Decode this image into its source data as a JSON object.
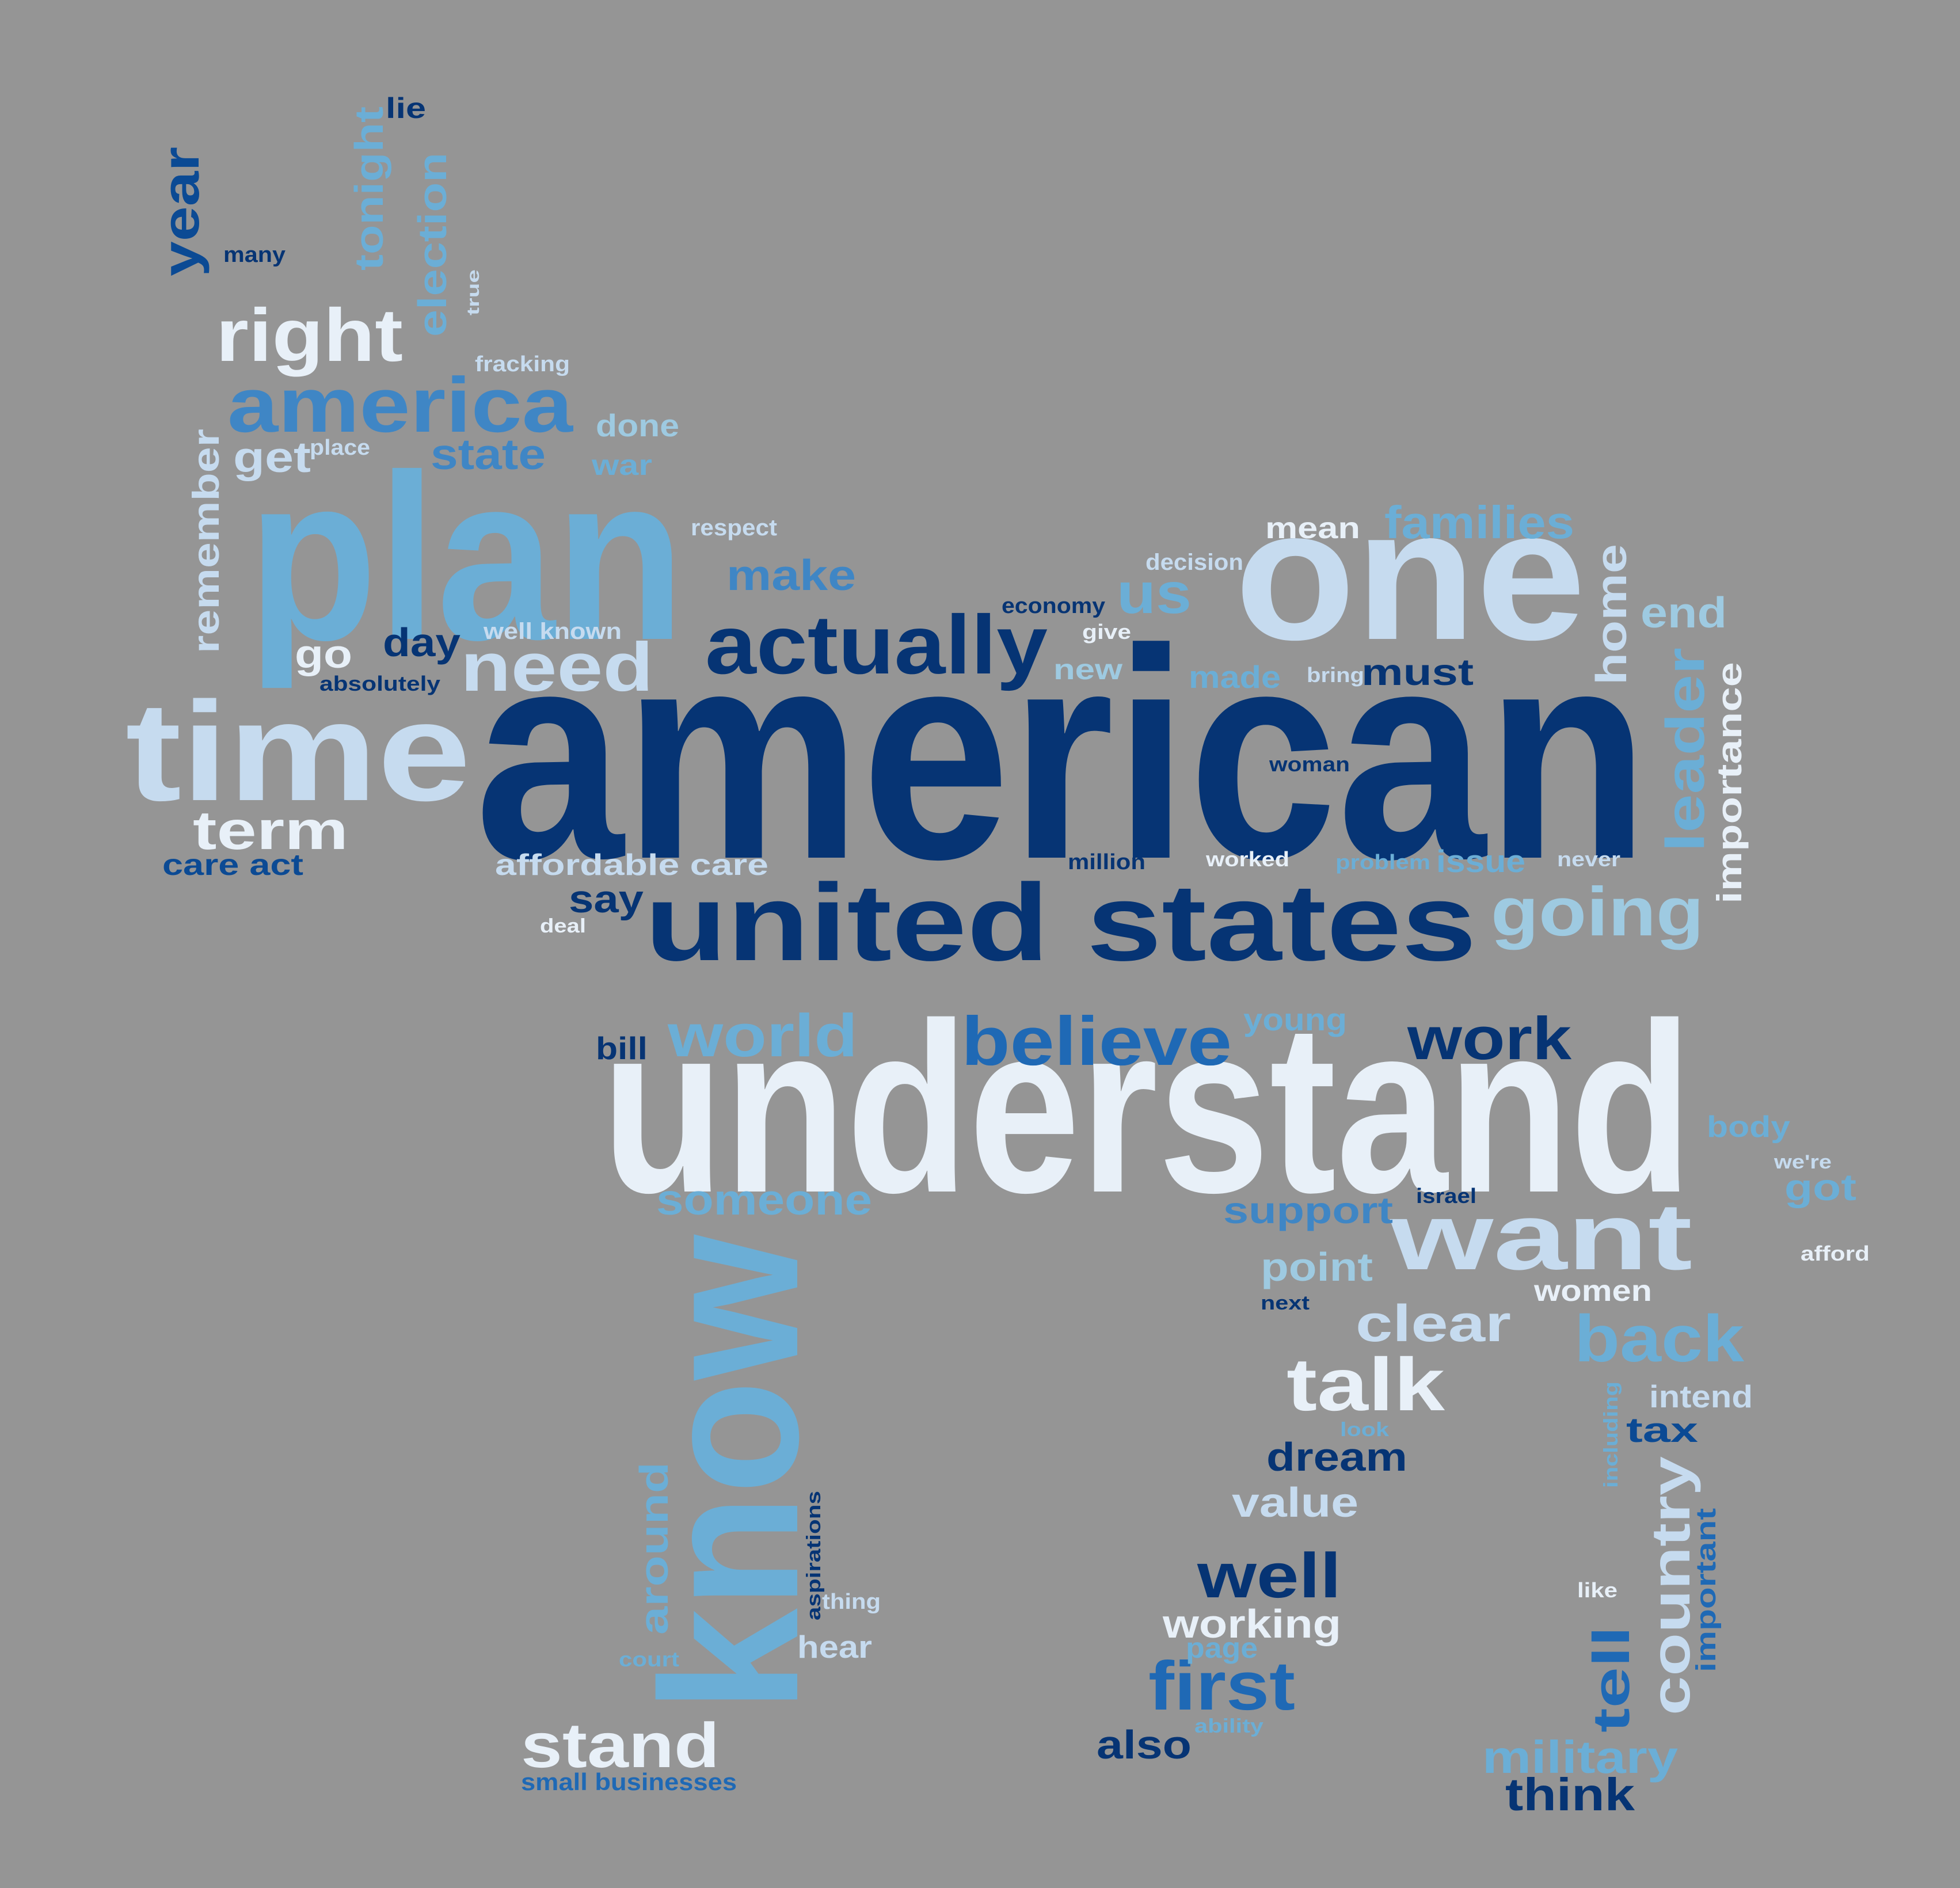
{
  "word_cloud": {
    "background": "#959595",
    "palette": {
      "navy": "#063474",
      "dark_blue": "#0B4A94",
      "blue": "#1F69B5",
      "mid_blue": "#3F86C5",
      "light_blue": "#6BAED6",
      "sky": "#9ECAE1",
      "pale": "#C6DBEF",
      "white": "#E8F0F8"
    },
    "words": [
      {
        "text": "american",
        "color": "navy"
      },
      {
        "text": "understand",
        "color": "white"
      },
      {
        "text": "plan",
        "color": "light_blue"
      },
      {
        "text": "one",
        "color": "pale"
      },
      {
        "text": "know",
        "color": "light_blue"
      },
      {
        "text": "time",
        "color": "pale"
      },
      {
        "text": "united states",
        "color": "navy"
      },
      {
        "text": "want",
        "color": "pale"
      },
      {
        "text": "actually",
        "color": "navy"
      },
      {
        "text": "america",
        "color": "mid_blue"
      },
      {
        "text": "believe",
        "color": "blue"
      },
      {
        "text": "going",
        "color": "sky"
      },
      {
        "text": "right",
        "color": "white"
      },
      {
        "text": "need",
        "color": "pale"
      },
      {
        "text": "talk",
        "color": "white"
      },
      {
        "text": "world",
        "color": "light_blue"
      },
      {
        "text": "work",
        "color": "navy"
      },
      {
        "text": "back",
        "color": "light_blue"
      },
      {
        "text": "us",
        "color": "light_blue"
      },
      {
        "text": "first",
        "color": "blue"
      },
      {
        "text": "stand",
        "color": "white"
      },
      {
        "text": "term",
        "color": "white"
      },
      {
        "text": "well",
        "color": "navy"
      },
      {
        "text": "clear",
        "color": "pale"
      },
      {
        "text": "families",
        "color": "light_blue"
      },
      {
        "text": "make",
        "color": "mid_blue"
      },
      {
        "text": "state",
        "color": "mid_blue"
      },
      {
        "text": "leader",
        "color": "light_blue"
      },
      {
        "text": "country",
        "color": "pale"
      },
      {
        "text": "year",
        "color": "dark_blue"
      },
      {
        "text": "tell",
        "color": "blue"
      },
      {
        "text": "military",
        "color": "light_blue"
      },
      {
        "text": "think",
        "color": "navy"
      },
      {
        "text": "someone",
        "color": "light_blue"
      },
      {
        "text": "home",
        "color": "pale"
      },
      {
        "text": "end",
        "color": "sky"
      },
      {
        "text": "get",
        "color": "pale"
      },
      {
        "text": "remember",
        "color": "pale"
      },
      {
        "text": "election",
        "color": "light_blue"
      },
      {
        "text": "tonight",
        "color": "light_blue"
      },
      {
        "text": "day",
        "color": "navy"
      },
      {
        "text": "go",
        "color": "white"
      },
      {
        "text": "must",
        "color": "navy"
      },
      {
        "text": "support",
        "color": "mid_blue"
      },
      {
        "text": "point",
        "color": "sky"
      },
      {
        "text": "value",
        "color": "pale"
      },
      {
        "text": "working",
        "color": "white"
      },
      {
        "text": "dream",
        "color": "navy"
      },
      {
        "text": "also",
        "color": "navy"
      },
      {
        "text": "around",
        "color": "light_blue"
      },
      {
        "text": "say",
        "color": "navy"
      },
      {
        "text": "importance",
        "color": "white"
      },
      {
        "text": "care act",
        "color": "dark_blue"
      },
      {
        "text": "affordable care",
        "color": "pale"
      },
      {
        "text": "mean",
        "color": "white"
      },
      {
        "text": "done",
        "color": "sky"
      },
      {
        "text": "war",
        "color": "light_blue"
      },
      {
        "text": "issue",
        "color": "light_blue"
      },
      {
        "text": "made",
        "color": "light_blue"
      },
      {
        "text": "new",
        "color": "sky"
      },
      {
        "text": "tax",
        "color": "dark_blue"
      },
      {
        "text": "intend",
        "color": "pale"
      },
      {
        "text": "got",
        "color": "light_blue"
      },
      {
        "text": "young",
        "color": "light_blue"
      },
      {
        "text": "bill",
        "color": "navy"
      },
      {
        "text": "hear",
        "color": "pale"
      },
      {
        "text": "women",
        "color": "white"
      },
      {
        "text": "body",
        "color": "light_blue"
      },
      {
        "text": "important",
        "color": "blue"
      },
      {
        "text": "small businesses",
        "color": "blue"
      },
      {
        "text": "lie",
        "color": "navy"
      },
      {
        "text": "page",
        "color": "light_blue"
      },
      {
        "text": "economy",
        "color": "navy"
      },
      {
        "text": "well known",
        "color": "pale"
      },
      {
        "text": "decision",
        "color": "pale"
      },
      {
        "text": "respect",
        "color": "pale"
      },
      {
        "text": "fracking",
        "color": "pale"
      },
      {
        "text": "many",
        "color": "navy"
      },
      {
        "text": "place",
        "color": "pale"
      },
      {
        "text": "absolutely",
        "color": "navy"
      },
      {
        "text": "give",
        "color": "white"
      },
      {
        "text": "bring",
        "color": "pale"
      },
      {
        "text": "woman",
        "color": "navy"
      },
      {
        "text": "million",
        "color": "navy"
      },
      {
        "text": "worked",
        "color": "white"
      },
      {
        "text": "problem",
        "color": "light_blue"
      },
      {
        "text": "never",
        "color": "pale"
      },
      {
        "text": "deal",
        "color": "white"
      },
      {
        "text": "israel",
        "color": "navy"
      },
      {
        "text": "we're",
        "color": "pale"
      },
      {
        "text": "afford",
        "color": "white"
      },
      {
        "text": "next",
        "color": "navy"
      },
      {
        "text": "look",
        "color": "light_blue"
      },
      {
        "text": "including",
        "color": "light_blue"
      },
      {
        "text": "like",
        "color": "white"
      },
      {
        "text": "aspirations",
        "color": "navy"
      },
      {
        "text": "thing",
        "color": "pale"
      },
      {
        "text": "court",
        "color": "light_blue"
      },
      {
        "text": "ability",
        "color": "light_blue"
      },
      {
        "text": "true",
        "color": "pale"
      }
    ]
  }
}
